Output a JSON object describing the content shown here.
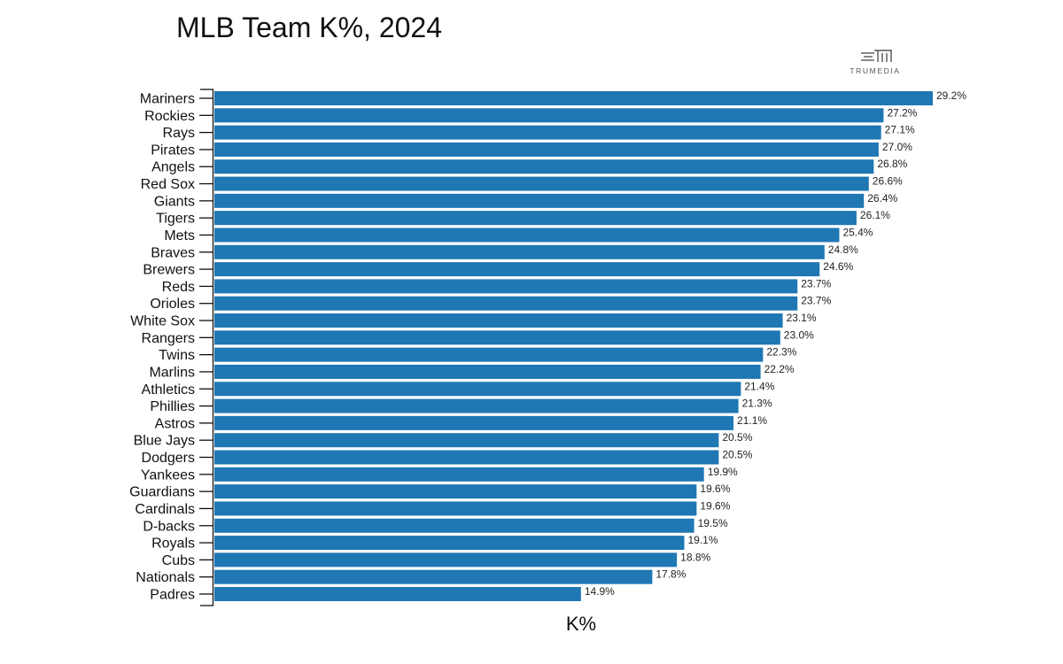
{
  "chart_data": {
    "type": "bar",
    "orientation": "horizontal",
    "title": "MLB Team K%, 2024",
    "xlabel": "K%",
    "ylabel": "",
    "categories": [
      "Mariners",
      "Rockies",
      "Rays",
      "Pirates",
      "Angels",
      "Red Sox",
      "Giants",
      "Tigers",
      "Mets",
      "Braves",
      "Brewers",
      "Reds",
      "Orioles",
      "White Sox",
      "Rangers",
      "Twins",
      "Marlins",
      "Athletics",
      "Phillies",
      "Astros",
      "Blue Jays",
      "Dodgers",
      "Yankees",
      "Guardians",
      "Cardinals",
      "D-backs",
      "Royals",
      "Cubs",
      "Nationals",
      "Padres"
    ],
    "values": [
      29.2,
      27.2,
      27.1,
      27.0,
      26.8,
      26.6,
      26.4,
      26.1,
      25.4,
      24.8,
      24.6,
      23.7,
      23.7,
      23.1,
      23.0,
      22.3,
      22.2,
      21.4,
      21.3,
      21.1,
      20.5,
      20.5,
      19.9,
      19.6,
      19.6,
      19.5,
      19.1,
      18.8,
      17.8,
      14.9
    ],
    "labels": [
      "29.2%",
      "27.2%",
      "27.1%",
      "27.0%",
      "26.8%",
      "26.6%",
      "26.4%",
      "26.1%",
      "25.4%",
      "24.8%",
      "24.6%",
      "23.7%",
      "23.7%",
      "23.1%",
      "23.0%",
      "22.3%",
      "22.2%",
      "21.4%",
      "21.3%",
      "21.1%",
      "20.5%",
      "20.5%",
      "19.9%",
      "19.6%",
      "19.6%",
      "19.5%",
      "19.1%",
      "18.8%",
      "17.8%",
      "14.9%"
    ],
    "xlim": [
      0,
      29.2
    ],
    "grid": false,
    "legend": "none",
    "bar_color": "#1f77b4"
  },
  "brand": {
    "name": "TRUMEDIA",
    "logo_icon": "trumedia-logo-icon"
  }
}
